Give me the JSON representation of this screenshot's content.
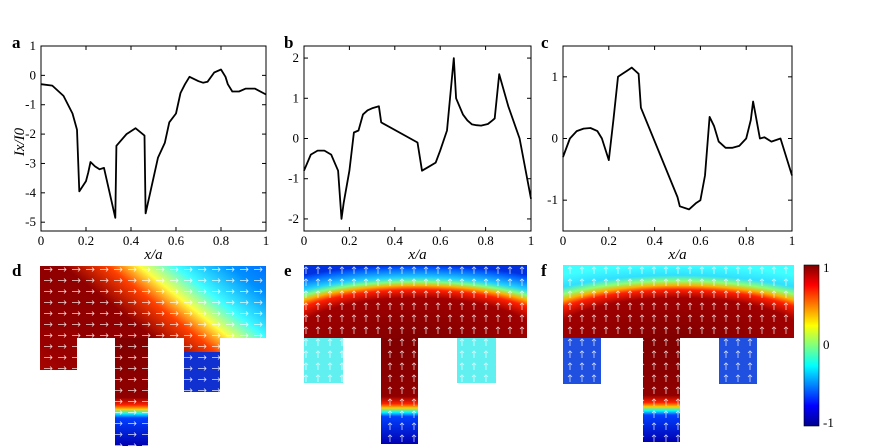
{
  "chart_data": [
    {
      "panel": "a",
      "type": "line",
      "xlabel": "x/a",
      "ylabel": "Ix/I0",
      "xlim": [
        0,
        1
      ],
      "ylim": [
        -5.3,
        1
      ],
      "xticks": [
        "0",
        "0.2",
        "0.4",
        "0.6",
        "0.8",
        "1"
      ],
      "yticks": [
        "1",
        "0",
        "-1",
        "-2",
        "-3",
        "-4",
        "-5"
      ],
      "series": [
        {
          "name": "Ix/I0",
          "x": [
            0,
            0.05,
            0.1,
            0.14,
            0.16,
            0.17,
            0.2,
            0.21,
            0.22,
            0.24,
            0.26,
            0.28,
            0.33,
            0.335,
            0.38,
            0.42,
            0.46,
            0.465,
            0.52,
            0.55,
            0.57,
            0.6,
            0.62,
            0.64,
            0.66,
            0.7,
            0.72,
            0.74,
            0.77,
            0.8,
            0.82,
            0.83,
            0.85,
            0.88,
            0.91,
            0.95,
            1.0
          ],
          "y": [
            -0.3,
            -0.35,
            -0.7,
            -1.3,
            -1.85,
            -3.95,
            -3.6,
            -3.3,
            -2.95,
            -3.1,
            -3.2,
            -3.15,
            -4.85,
            -2.4,
            -2.0,
            -1.8,
            -2.05,
            -4.7,
            -2.8,
            -2.3,
            -1.6,
            -1.3,
            -0.6,
            -0.3,
            -0.05,
            -0.2,
            -0.25,
            -0.22,
            0.1,
            0.2,
            -0.05,
            -0.3,
            -0.55,
            -0.55,
            -0.45,
            -0.45,
            -0.65
          ]
        }
      ]
    },
    {
      "panel": "b",
      "type": "line",
      "xlabel": "x/a",
      "ylabel": "",
      "xlim": [
        0,
        1
      ],
      "ylim": [
        -2.3,
        2.3
      ],
      "xticks": [
        "0",
        "0.2",
        "0.4",
        "0.6",
        "0.8",
        "1"
      ],
      "yticks": [
        "2",
        "1",
        "0",
        "-1",
        "-2"
      ],
      "series": [
        {
          "name": "Ix/I0",
          "x": [
            0,
            0.03,
            0.06,
            0.09,
            0.12,
            0.15,
            0.165,
            0.175,
            0.2,
            0.22,
            0.24,
            0.26,
            0.28,
            0.3,
            0.33,
            0.34,
            0.5,
            0.52,
            0.55,
            0.58,
            0.6,
            0.63,
            0.66,
            0.67,
            0.7,
            0.72,
            0.74,
            0.76,
            0.78,
            0.81,
            0.83,
            0.84,
            0.86,
            0.9,
            0.95,
            1.0
          ],
          "y": [
            -0.8,
            -0.4,
            -0.3,
            -0.3,
            -0.4,
            -0.8,
            -2.0,
            -1.6,
            -0.8,
            0.15,
            0.2,
            0.6,
            0.7,
            0.75,
            0.8,
            0.4,
            -0.1,
            -0.8,
            -0.7,
            -0.6,
            -0.3,
            0.2,
            2.0,
            1.0,
            0.6,
            0.45,
            0.35,
            0.33,
            0.32,
            0.36,
            0.45,
            0.5,
            1.6,
            0.8,
            0.0,
            -1.5
          ]
        }
      ]
    },
    {
      "panel": "c",
      "type": "line",
      "xlabel": "x/a",
      "ylabel": "",
      "xlim": [
        0,
        1
      ],
      "ylim": [
        -1.5,
        1.5
      ],
      "xticks": [
        "0",
        "0.2",
        "0.4",
        "0.6",
        "0.8",
        "1"
      ],
      "yticks": [
        "1",
        "0",
        "-1"
      ],
      "series": [
        {
          "name": "Ix/I0",
          "x": [
            0,
            0.03,
            0.06,
            0.09,
            0.12,
            0.15,
            0.17,
            0.2,
            0.22,
            0.24,
            0.26,
            0.28,
            0.3,
            0.33,
            0.34,
            0.5,
            0.51,
            0.55,
            0.58,
            0.6,
            0.62,
            0.64,
            0.66,
            0.68,
            0.71,
            0.74,
            0.77,
            0.8,
            0.82,
            0.83,
            0.84,
            0.86,
            0.88,
            0.91,
            0.95,
            1.0
          ],
          "y": [
            -0.3,
            0.0,
            0.12,
            0.16,
            0.17,
            0.12,
            0.0,
            -0.35,
            0.3,
            1.0,
            1.05,
            1.1,
            1.15,
            1.05,
            0.5,
            -0.95,
            -1.1,
            -1.15,
            -1.05,
            -1.0,
            -0.6,
            0.35,
            0.2,
            -0.05,
            -0.15,
            -0.15,
            -0.12,
            0.0,
            0.3,
            0.6,
            0.4,
            0.0,
            0.02,
            -0.05,
            0.0,
            -0.6
          ]
        }
      ]
    },
    {
      "panel": "d",
      "type": "heatmap"
    },
    {
      "panel": "e",
      "type": "heatmap"
    },
    {
      "panel": "f",
      "type": "heatmap"
    }
  ],
  "colorbar": {
    "max_label": "1",
    "mid_label": "0",
    "min_label": "-1",
    "vmin": -1,
    "vmax": 1
  }
}
